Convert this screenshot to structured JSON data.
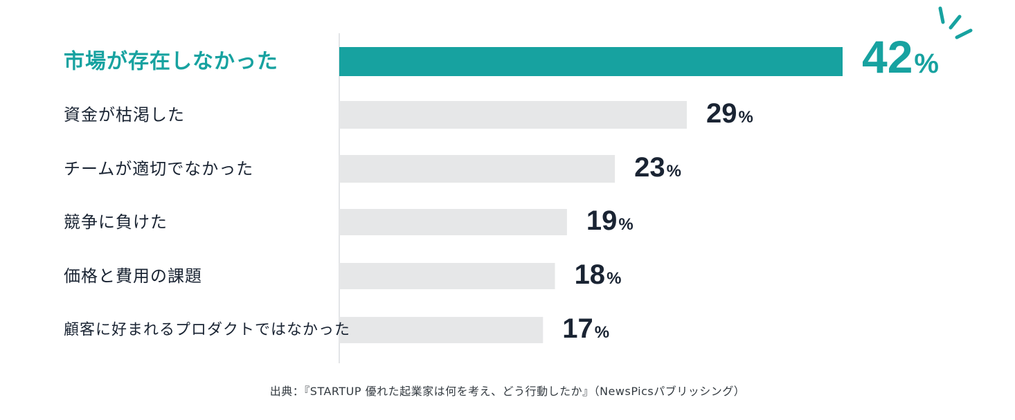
{
  "chart_data": {
    "type": "bar",
    "orientation": "horizontal",
    "categories": [
      "市場が存在しなかった",
      "資金が枯渇した",
      "チームが適切でなかった",
      "競争に負けた",
      "価格と費用の課題",
      "顧客に好まれるプロダクトではなかった"
    ],
    "values": [
      42,
      29,
      23,
      19,
      18,
      17
    ],
    "value_suffix": "%",
    "highlight_index": 0,
    "xlim": [
      0,
      45
    ],
    "grid": false,
    "colors": {
      "highlight": "#17a2a0",
      "bar": "#e6e7e8",
      "label": "#1a2433",
      "highlight_label": "#17a2a0"
    }
  },
  "source": "出典：『STARTUP 優れた起業家は何を考え、どう行動したか』（NewsPicsパブリッシング）"
}
